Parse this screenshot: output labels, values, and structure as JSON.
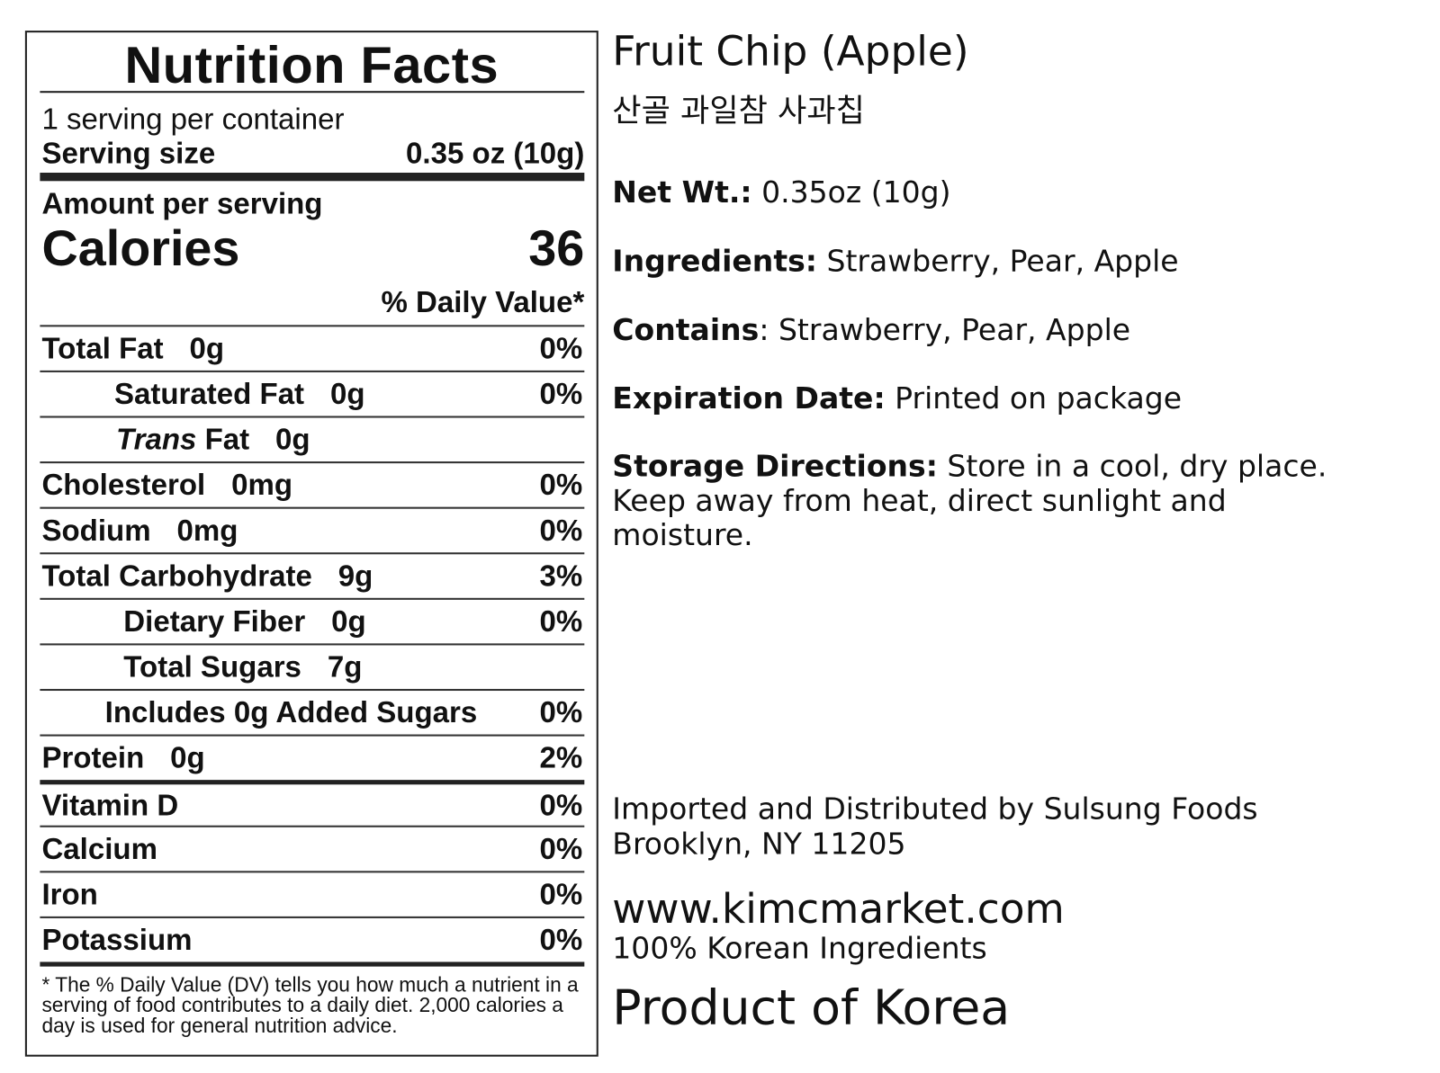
{
  "label": {
    "title": "Nutrition Facts",
    "servings": "1 serving per container",
    "serving_size_label": "Serving size",
    "serving_size_value": "0.35 oz (10g)",
    "amount_per_serving": "Amount per serving",
    "calories_label": "Calories",
    "calories_value": "36",
    "daily_value_header": "% Daily Value*",
    "rows": [
      {
        "label": "Total Fat",
        "amount": "0g",
        "dv": "0%"
      },
      {
        "label": "Saturated Fat",
        "amount": "0g",
        "dv": "0%"
      },
      {
        "label_italic": "Trans",
        "label": " Fat",
        "amount": "0g",
        "dv": ""
      },
      {
        "label": "Cholesterol",
        "amount": "0mg",
        "dv": "0%"
      },
      {
        "label": "Sodium",
        "amount": "0mg",
        "dv": "0%"
      },
      {
        "label": "Total Carbohydrate",
        "amount": "9g",
        "dv": "3%"
      },
      {
        "label": "Dietary Fiber",
        "amount": "0g",
        "dv": "0%"
      },
      {
        "label": "Total Sugars",
        "amount": "7g",
        "dv": ""
      },
      {
        "label": "Includes 0g Added Sugars",
        "amount": "",
        "dv": "0%"
      },
      {
        "label": "Protein",
        "amount": "0g",
        "dv": "2%"
      },
      {
        "label": "Vitamin D",
        "amount": "",
        "dv": "0%"
      },
      {
        "label": "Calcium",
        "amount": "",
        "dv": "0%"
      },
      {
        "label": "Iron",
        "amount": "",
        "dv": "0%"
      },
      {
        "label": "Potassium",
        "amount": "",
        "dv": "0%"
      }
    ],
    "footnote": "* The % Daily Value (DV) tells you how much a nutrient in a serving of food contributes to a daily diet. 2,000 calories a day is used for general nutrition advice."
  },
  "product": {
    "name": "Fruit Chip (Apple)",
    "korean_name": "산골 과일참 사과칩",
    "net_wt_label": "Net Wt.:",
    "net_wt_value": " 0.35oz (10g)",
    "ingredients_label": "Ingredients:",
    "ingredients_value": " Strawberry, Pear, Apple",
    "contains_label": "Contains",
    "contains_value": ": Strawberry, Pear, Apple",
    "expiration_label": "Expiration Date:",
    "expiration_value": " Printed on package",
    "storage_label": "Storage Directions:",
    "storage_line1": " Store in a cool, dry place.",
    "storage_line2": "Keep away from heat, direct sunlight and",
    "storage_line3": "moisture.",
    "importer_line1": "Imported and Distributed by Sulsung Foods",
    "importer_line2": "Brooklyn, NY 11205",
    "website": "www.kimcmarket.com",
    "korean_ingredients": "100% Korean Ingredients",
    "origin": "Product of Korea"
  }
}
